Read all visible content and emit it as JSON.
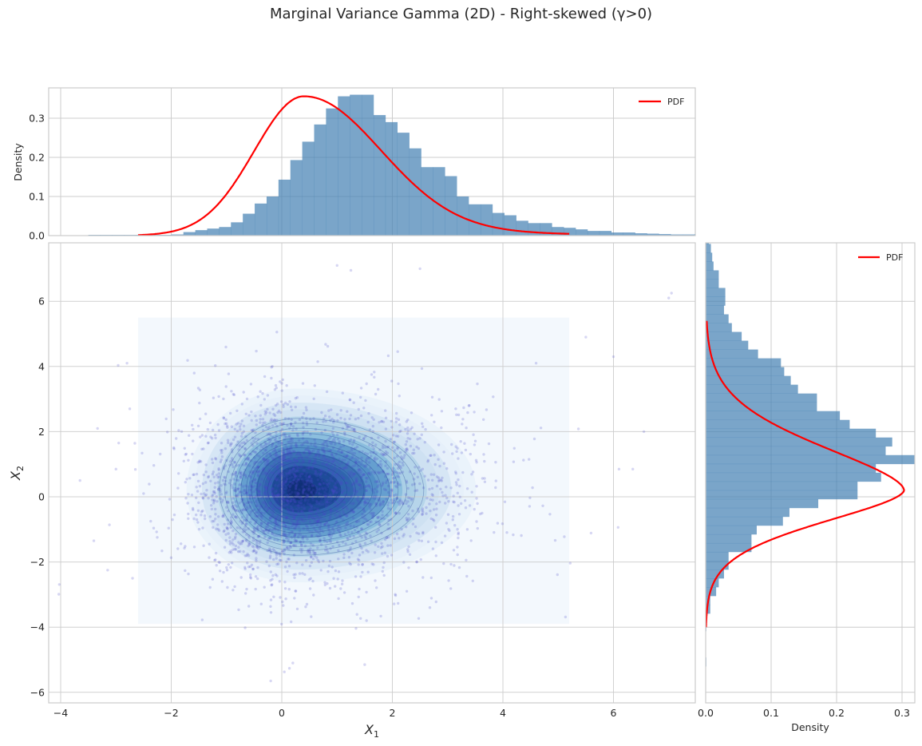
{
  "figure": {
    "title": "Marginal Variance Gamma (2D) - Right-skewed (γ>0)"
  },
  "colors": {
    "hist_fill": "#4682b4",
    "hist_alpha": 0.72,
    "pdf_line": "#ff0000",
    "scatter": "#4b4bc8",
    "grid": "#cccccc",
    "spine": "#cccccc",
    "contour_cmap": [
      "#f3f8fd",
      "#e2eef9",
      "#c6dbef",
      "#9ecae1",
      "#6baed6",
      "#3f7fc0",
      "#2458a6",
      "#0d3384",
      "#08205f"
    ]
  },
  "chart_data": [
    {
      "id": "top_marginal",
      "type": "bar",
      "title": "",
      "xlabel": "",
      "ylabel": "Density",
      "xlim": [
        -4.2,
        7.5
      ],
      "ylim": [
        0,
        0.378
      ],
      "yticks": [
        "0.0",
        "0.1",
        "0.2",
        "0.3"
      ],
      "ytick_values": [
        0,
        0.1,
        0.2,
        0.3
      ],
      "xgrid": [
        -4,
        -2,
        0,
        2,
        4,
        6
      ],
      "grid": true,
      "legend": {
        "position": "upper right",
        "entries": [
          "PDF"
        ]
      },
      "histogram": {
        "bin_start": -3.5,
        "bin_width": 0.215,
        "densities": [
          0.002,
          0.002,
          0.002,
          0.002,
          0.002,
          0.002,
          0.002,
          0.003,
          0.009,
          0.014,
          0.018,
          0.022,
          0.034,
          0.056,
          0.082,
          0.1,
          0.143,
          0.193,
          0.24,
          0.284,
          0.325,
          0.356,
          0.36,
          0.36,
          0.308,
          0.29,
          0.263,
          0.223,
          0.175,
          0.175,
          0.152,
          0.1,
          0.08,
          0.08,
          0.058,
          0.052,
          0.038,
          0.032,
          0.032,
          0.022,
          0.02,
          0.016,
          0.012,
          0.012,
          0.008,
          0.008,
          0.006,
          0.005,
          0.004,
          0.003,
          0.003,
          0.004,
          0.002,
          0.001,
          0.001,
          0.0,
          0.002,
          0.0,
          0.001,
          0.0,
          0.0,
          0.0,
          0.001,
          0.0,
          0.0,
          0.001,
          0.0,
          0.0,
          0.0,
          0.001
        ]
      },
      "pdf_curve": {
        "label": "PDF",
        "x_range": [
          -2.6,
          5.2
        ],
        "mode": 0.4,
        "peak": 0.356,
        "sigma_left": 0.9,
        "sigma_right": 1.35
      }
    },
    {
      "id": "joint_scatter",
      "type": "scatter",
      "title": "",
      "xlabel": "X1",
      "ylabel": "X2",
      "xlim": [
        -4.2,
        7.5
      ],
      "ylim": [
        -6.3,
        7.8
      ],
      "xticks": [
        "−4",
        "−2",
        "0",
        "2",
        "4",
        "6"
      ],
      "xtick_values": [
        -4,
        -2,
        0,
        2,
        4,
        6
      ],
      "yticks": [
        "−6",
        "−4",
        "−2",
        "0",
        "2",
        "4",
        "6"
      ],
      "ytick_values": [
        -6,
        -4,
        -2,
        0,
        2,
        4,
        6
      ],
      "grid": true,
      "n_points": 3000,
      "center": [
        0.3,
        0.2
      ],
      "spread": {
        "x_left": 0.85,
        "x_right": 1.35,
        "y": 1.25
      },
      "contour_extent": {
        "x": [
          -2.6,
          5.2
        ],
        "y": [
          -3.9,
          5.5
        ]
      },
      "contour_levels": 14,
      "point_alpha": 0.22,
      "outliers": [
        [
          -3.65,
          0.5
        ],
        [
          -3.4,
          -1.35
        ],
        [
          -3.15,
          -2.25
        ],
        [
          -3.0,
          0.85
        ],
        [
          -2.95,
          1.65
        ],
        [
          -2.8,
          4.1
        ],
        [
          -2.75,
          2.7
        ],
        [
          -2.7,
          -2.5
        ],
        [
          -2.5,
          0.1
        ],
        [
          4.6,
          4.1
        ],
        [
          5.5,
          4.9
        ],
        [
          6.0,
          4.3
        ],
        [
          6.1,
          0.85
        ],
        [
          6.35,
          0.85
        ],
        [
          6.55,
          2.0
        ],
        [
          7.0,
          6.1
        ],
        [
          7.05,
          6.25
        ],
        [
          1.0,
          7.1
        ],
        [
          1.25,
          6.95
        ],
        [
          2.5,
          7.0
        ],
        [
          -0.2,
          -5.65
        ],
        [
          1.5,
          -5.15
        ],
        [
          0.2,
          -5.1
        ]
      ]
    },
    {
      "id": "right_marginal",
      "type": "bar",
      "orientation": "horizontal",
      "title": "",
      "xlabel": "Density",
      "ylabel": "",
      "xlim": [
        0,
        0.32
      ],
      "ylim": [
        -6.3,
        7.8
      ],
      "xticks": [
        "0.0",
        "0.1",
        "0.2",
        "0.3"
      ],
      "xtick_values": [
        0,
        0.1,
        0.2,
        0.3
      ],
      "ygrid": [
        -6,
        -4,
        -2,
        0,
        2,
        4,
        6
      ],
      "grid": true,
      "legend": {
        "position": "upper right",
        "entries": [
          "PDF"
        ]
      },
      "histogram": {
        "bin_start": -5.2,
        "bin_width": 0.27,
        "densities": [
          0.001,
          0.0,
          0.0,
          0.0,
          0.001,
          0.002,
          0.007,
          0.007,
          0.016,
          0.02,
          0.028,
          0.035,
          0.035,
          0.07,
          0.07,
          0.078,
          0.118,
          0.128,
          0.172,
          0.232,
          0.232,
          0.268,
          0.26,
          0.328,
          0.275,
          0.285,
          0.26,
          0.22,
          0.205,
          0.17,
          0.17,
          0.141,
          0.13,
          0.12,
          0.115,
          0.08,
          0.065,
          0.055,
          0.04,
          0.035,
          0.028,
          0.03,
          0.03,
          0.02,
          0.02,
          0.012,
          0.01,
          0.008,
          0.005,
          0.0,
          0.0,
          0.001,
          0.001
        ]
      },
      "pdf_curve": {
        "label": "PDF",
        "y_range": [
          -4.0,
          5.4
        ],
        "mode": 0.2,
        "peak": 0.303,
        "sigma_below": 0.95,
        "sigma_above": 1.3
      }
    }
  ]
}
